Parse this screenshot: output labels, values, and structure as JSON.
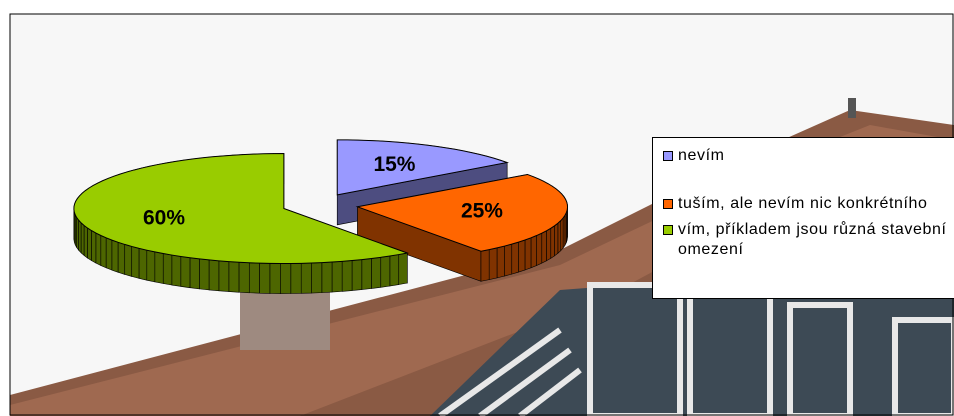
{
  "chart_data": {
    "type": "pie3d",
    "categories": [
      "nevím",
      "tuším, ale nevím nic konkrétního",
      "vím, příkladem jsou různá stavební omezení"
    ],
    "values": [
      15,
      25,
      60
    ],
    "value_labels": [
      "15%",
      "25%",
      "60%"
    ],
    "colors": [
      "#9999ff",
      "#ff6600",
      "#99cc00"
    ],
    "legend": "right"
  }
}
